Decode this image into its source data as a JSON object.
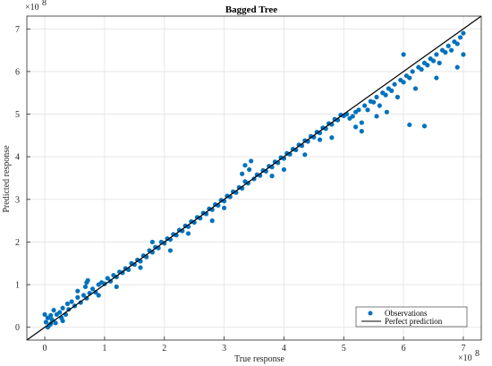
{
  "chart_data": {
    "type": "scatter",
    "title": "Bagged Tree",
    "xlabel": "True response",
    "ylabel": "Predicted response",
    "x_exponent_label": "×10",
    "x_exponent": "8",
    "y_exponent_label": "×10",
    "y_exponent": "8",
    "xlim": [
      -0.3,
      7.3
    ],
    "ylim": [
      -0.3,
      7.3
    ],
    "xticks": [
      0,
      1,
      2,
      3,
      4,
      5,
      6,
      7
    ],
    "yticks": [
      0,
      1,
      2,
      3,
      4,
      5,
      6,
      7
    ],
    "grid": true,
    "legend_position": "bottom-right",
    "colors": {
      "observations": "#0072bd",
      "perfect": "#000000"
    },
    "series": [
      {
        "name": "Observations",
        "kind": "scatter",
        "points": [
          [
            0.0,
            0.3
          ],
          [
            0.02,
            0.12
          ],
          [
            0.05,
            0.22
          ],
          [
            0.08,
            0.05
          ],
          [
            0.1,
            0.28
          ],
          [
            0.12,
            0.18
          ],
          [
            0.15,
            0.4
          ],
          [
            0.18,
            0.1
          ],
          [
            0.2,
            0.3
          ],
          [
            0.25,
            0.35
          ],
          [
            0.28,
            0.22
          ],
          [
            0.3,
            0.45
          ],
          [
            0.35,
            0.3
          ],
          [
            0.38,
            0.55
          ],
          [
            0.4,
            0.42
          ],
          [
            0.45,
            0.6
          ],
          [
            0.5,
            0.5
          ],
          [
            0.55,
            0.7
          ],
          [
            0.6,
            0.58
          ],
          [
            0.65,
            0.75
          ],
          [
            0.68,
            0.95
          ],
          [
            0.7,
            0.68
          ],
          [
            0.72,
            1.1
          ],
          [
            0.75,
            0.8
          ],
          [
            0.8,
            0.9
          ],
          [
            0.85,
            0.82
          ],
          [
            0.9,
            1.0
          ],
          [
            0.95,
            1.05
          ],
          [
            1.0,
            1.02
          ],
          [
            1.05,
            1.15
          ],
          [
            1.1,
            1.08
          ],
          [
            1.15,
            1.22
          ],
          [
            1.2,
            1.18
          ],
          [
            1.25,
            1.3
          ],
          [
            1.3,
            1.28
          ],
          [
            1.35,
            1.38
          ],
          [
            1.4,
            1.35
          ],
          [
            1.45,
            1.5
          ],
          [
            1.5,
            1.47
          ],
          [
            1.55,
            1.58
          ],
          [
            1.6,
            1.55
          ],
          [
            1.65,
            1.68
          ],
          [
            1.7,
            1.65
          ],
          [
            1.75,
            1.8
          ],
          [
            1.8,
            1.76
          ],
          [
            1.85,
            1.88
          ],
          [
            1.9,
            1.86
          ],
          [
            1.95,
            2.0
          ],
          [
            2.0,
            1.97
          ],
          [
            2.05,
            2.08
          ],
          [
            2.1,
            2.06
          ],
          [
            2.15,
            2.18
          ],
          [
            2.2,
            2.16
          ],
          [
            2.25,
            2.28
          ],
          [
            2.3,
            2.26
          ],
          [
            2.35,
            2.38
          ],
          [
            2.4,
            2.36
          ],
          [
            2.45,
            2.48
          ],
          [
            2.5,
            2.46
          ],
          [
            2.55,
            2.58
          ],
          [
            2.6,
            2.56
          ],
          [
            2.65,
            2.68
          ],
          [
            2.7,
            2.66
          ],
          [
            2.75,
            2.78
          ],
          [
            2.8,
            2.76
          ],
          [
            2.85,
            2.88
          ],
          [
            2.9,
            2.86
          ],
          [
            2.95,
            2.98
          ],
          [
            3.0,
            2.96
          ],
          [
            3.05,
            3.08
          ],
          [
            3.1,
            3.06
          ],
          [
            3.15,
            3.18
          ],
          [
            3.2,
            3.16
          ],
          [
            3.25,
            3.28
          ],
          [
            3.3,
            3.26
          ],
          [
            3.35,
            3.42
          ],
          [
            3.4,
            3.38
          ],
          [
            3.42,
            3.7
          ],
          [
            3.45,
            3.9
          ],
          [
            3.5,
            3.48
          ],
          [
            3.55,
            3.58
          ],
          [
            3.6,
            3.56
          ],
          [
            3.65,
            3.68
          ],
          [
            3.7,
            3.66
          ],
          [
            3.75,
            3.78
          ],
          [
            3.8,
            3.76
          ],
          [
            3.85,
            3.88
          ],
          [
            3.9,
            3.86
          ],
          [
            3.95,
            3.98
          ],
          [
            4.0,
            3.96
          ],
          [
            4.05,
            4.08
          ],
          [
            4.1,
            4.06
          ],
          [
            4.15,
            4.18
          ],
          [
            4.2,
            4.16
          ],
          [
            4.25,
            4.28
          ],
          [
            4.3,
            4.26
          ],
          [
            4.35,
            4.38
          ],
          [
            4.4,
            4.36
          ],
          [
            4.45,
            4.48
          ],
          [
            4.5,
            4.46
          ],
          [
            4.55,
            4.58
          ],
          [
            4.6,
            4.56
          ],
          [
            4.65,
            4.68
          ],
          [
            4.7,
            4.66
          ],
          [
            4.75,
            4.78
          ],
          [
            4.8,
            4.76
          ],
          [
            4.85,
            4.88
          ],
          [
            4.9,
            4.86
          ],
          [
            4.95,
            4.98
          ],
          [
            5.0,
            4.96
          ],
          [
            5.05,
            5.0
          ],
          [
            5.1,
            4.9
          ],
          [
            5.15,
            4.95
          ],
          [
            5.2,
            4.7
          ],
          [
            5.25,
            5.1
          ],
          [
            5.3,
            4.8
          ],
          [
            5.35,
            5.2
          ],
          [
            5.4,
            5.1
          ],
          [
            5.45,
            5.3
          ],
          [
            5.5,
            5.28
          ],
          [
            5.55,
            5.4
          ],
          [
            5.6,
            5.2
          ],
          [
            5.65,
            5.5
          ],
          [
            5.7,
            5.45
          ],
          [
            5.75,
            5.6
          ],
          [
            5.8,
            5.55
          ],
          [
            5.85,
            5.7
          ],
          [
            5.9,
            5.4
          ],
          [
            5.95,
            5.8
          ],
          [
            6.0,
            5.75
          ],
          [
            6.05,
            5.9
          ],
          [
            6.1,
            5.85
          ],
          [
            6.15,
            6.0
          ],
          [
            6.2,
            5.6
          ],
          [
            6.25,
            6.1
          ],
          [
            6.3,
            6.05
          ],
          [
            6.35,
            6.2
          ],
          [
            6.4,
            6.15
          ],
          [
            6.45,
            6.3
          ],
          [
            6.5,
            6.25
          ],
          [
            6.55,
            6.4
          ],
          [
            6.6,
            6.2
          ],
          [
            6.65,
            6.5
          ],
          [
            6.7,
            6.45
          ],
          [
            6.75,
            6.6
          ],
          [
            6.8,
            6.5
          ],
          [
            6.85,
            6.7
          ],
          [
            6.9,
            6.65
          ],
          [
            6.95,
            6.8
          ],
          [
            7.0,
            6.9
          ],
          [
            4.35,
            4.05
          ],
          [
            4.8,
            4.45
          ],
          [
            5.3,
            4.6
          ],
          [
            5.55,
            4.95
          ],
          [
            5.72,
            5.05
          ],
          [
            6.1,
            4.75
          ],
          [
            6.35,
            4.72
          ],
          [
            6.55,
            5.85
          ],
          [
            6.9,
            6.1
          ],
          [
            7.0,
            6.4
          ],
          [
            1.2,
            0.95
          ],
          [
            2.1,
            1.8
          ],
          [
            2.8,
            2.5
          ],
          [
            3.3,
            3.6
          ],
          [
            3.35,
            3.8
          ],
          [
            0.7,
            1.05
          ],
          [
            0.55,
            0.85
          ],
          [
            1.8,
            2.0
          ],
          [
            4.0,
            3.7
          ],
          [
            6.0,
            6.4
          ],
          [
            0.05,
            0.0
          ],
          [
            0.1,
            0.08
          ],
          [
            0.3,
            0.15
          ],
          [
            0.9,
            0.75
          ],
          [
            1.6,
            1.4
          ],
          [
            2.4,
            2.2
          ],
          [
            3.0,
            2.8
          ],
          [
            3.8,
            3.55
          ],
          [
            4.6,
            4.4
          ],
          [
            5.2,
            5.05
          ]
        ]
      },
      {
        "name": "Perfect prediction",
        "kind": "line",
        "x": [
          -0.3,
          7.3
        ],
        "y": [
          -0.3,
          7.3
        ]
      }
    ]
  }
}
